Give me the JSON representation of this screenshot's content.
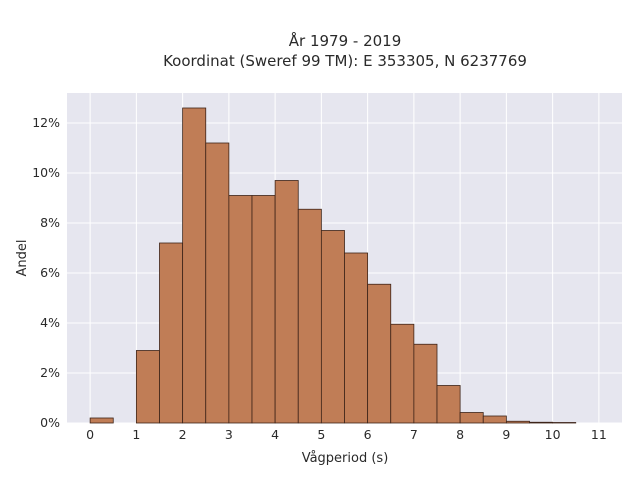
{
  "chart_data": {
    "type": "bar",
    "title_lines": [
      "År 1979 - 2019",
      "Koordinat (Sweref 99 TM): E 353305, N 6237769"
    ],
    "xlabel": "Vågperiod (s)",
    "ylabel": "Andel",
    "bin_width": 0.5,
    "bin_starts": [
      0,
      0.5,
      1,
      1.5,
      2,
      2.5,
      3,
      3.5,
      4,
      4.5,
      5,
      5.5,
      6,
      6.5,
      7,
      7.5,
      8,
      8.5,
      9,
      9.5,
      10,
      10.5
    ],
    "values": [
      0.2,
      0,
      2.9,
      7.2,
      12.6,
      11.2,
      9.1,
      9.1,
      9.7,
      8.55,
      7.7,
      6.8,
      5.55,
      3.95,
      3.15,
      1.5,
      0.42,
      0.28,
      0.07,
      0.03,
      0.02,
      0
    ],
    "xlim": [
      -0.5,
      11.5
    ],
    "ylim": [
      0,
      13.2
    ],
    "xticks": [
      0,
      1,
      2,
      3,
      4,
      5,
      6,
      7,
      8,
      9,
      10,
      11
    ],
    "yticks": [
      0,
      2,
      4,
      6,
      8,
      10,
      12
    ],
    "ytick_labels": [
      "0%",
      "2%",
      "4%",
      "6%",
      "8%",
      "10%",
      "12%"
    ],
    "grid": true,
    "colors": {
      "bar_fill": "#c07d56",
      "bar_edge": "#3d2418",
      "plot_bg": "#e6e6ef",
      "grid": "#ffffff"
    }
  }
}
